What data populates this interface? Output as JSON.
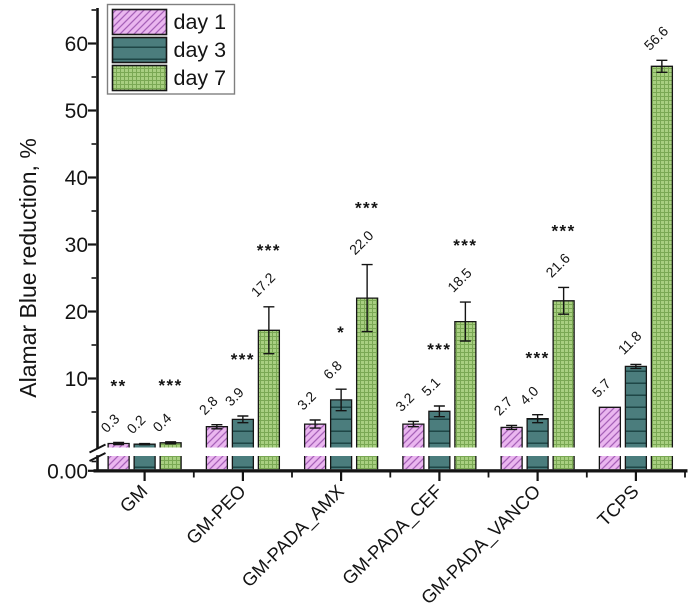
{
  "chart_data": {
    "type": "bar",
    "title": "",
    "ylabel": "Alamar Blue reduction, %",
    "xlabel": "",
    "categories": [
      "GM",
      "GM-PEO",
      "GM-PADA_AMX",
      "GM-PADA_CEF",
      "GM-PADA_VANCO",
      "TCPS"
    ],
    "series": [
      {
        "name": "day 1",
        "pattern": "diagonal",
        "fill": "#eab6ef",
        "hatch": "#a661b8",
        "values": [
          0.3,
          2.8,
          3.2,
          3.2,
          2.7,
          5.7
        ],
        "errors": [
          0.15,
          0.3,
          0.6,
          0.4,
          0.3,
          0
        ],
        "significance": [
          "**",
          "",
          "",
          "",
          "",
          ""
        ]
      },
      {
        "name": "day 3",
        "pattern": "horizontal",
        "fill": "#4b7d7d",
        "hatch": "#1f4747",
        "values": [
          0.2,
          3.9,
          6.8,
          5.1,
          4.0,
          11.8
        ],
        "errors": [
          0.08,
          0.5,
          1.6,
          0.8,
          0.6,
          0.3
        ],
        "significance": [
          "",
          "***",
          "*",
          "***",
          "***",
          ""
        ]
      },
      {
        "name": "day 7",
        "pattern": "grid",
        "fill": "#a8cf81",
        "hatch": "#7aa854",
        "values": [
          0.4,
          17.2,
          22.0,
          18.5,
          21.6,
          56.6
        ],
        "errors": [
          0.15,
          3.5,
          5.0,
          2.9,
          2.0,
          0.9
        ],
        "significance": [
          "***",
          "***",
          "***",
          "***",
          "***",
          ""
        ]
      }
    ],
    "value_labels_decimals": 1,
    "y_axis": {
      "major_labels": [
        "0.00",
        "10",
        "20",
        "30",
        "40",
        "50",
        "60"
      ],
      "major_values": [
        0,
        10,
        20,
        30,
        40,
        50,
        60
      ],
      "minor_values": [
        5,
        15,
        25,
        35,
        45,
        55,
        65
      ],
      "range": [
        0,
        63
      ],
      "axis_break": true
    },
    "legend": {
      "position": "top-left",
      "entries": [
        "day 1",
        "day 3",
        "day 7"
      ]
    },
    "grid": false,
    "background": "#ffffff",
    "axis_color": "#141414"
  }
}
